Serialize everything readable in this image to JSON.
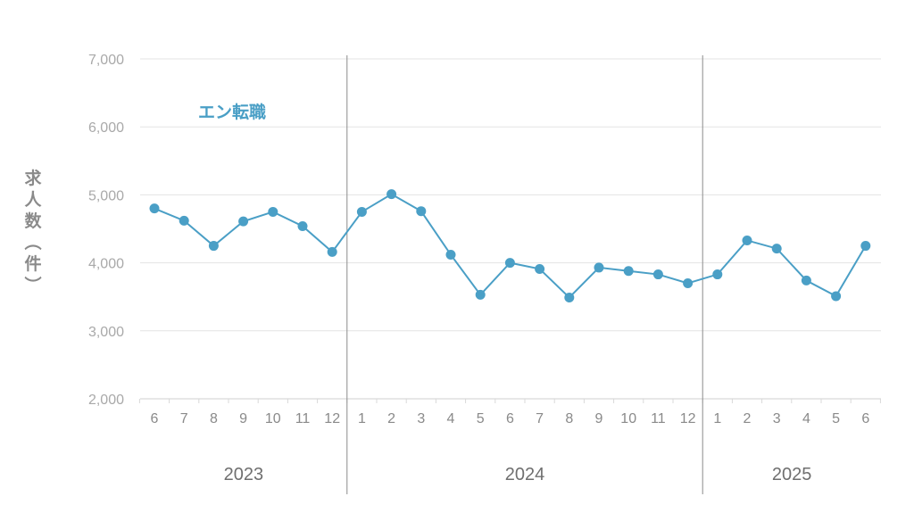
{
  "chart_data": {
    "type": "line",
    "ylabel": "求人数（件）",
    "ylim": [
      2000,
      7000
    ],
    "yticks": [
      "2,000",
      "3,000",
      "4,000",
      "5,000",
      "6,000",
      "7,000"
    ],
    "grid": true,
    "years": [
      {
        "label": "2023",
        "months": [
          "6",
          "7",
          "8",
          "9",
          "10",
          "11",
          "12"
        ]
      },
      {
        "label": "2024",
        "months": [
          "1",
          "2",
          "3",
          "4",
          "5",
          "6",
          "7",
          "8",
          "9",
          "10",
          "11",
          "12"
        ]
      },
      {
        "label": "2025",
        "months": [
          "1",
          "2",
          "3",
          "4",
          "5",
          "6"
        ]
      }
    ],
    "series": [
      {
        "name": "エン転職",
        "color": "#4a9fc6",
        "values": [
          4800,
          4620,
          4250,
          4610,
          4750,
          4540,
          4160,
          4750,
          5010,
          4760,
          4120,
          3530,
          4000,
          3910,
          3490,
          3930,
          3880,
          3830,
          3700,
          3830,
          4330,
          4210,
          3740,
          3510,
          4250
        ]
      }
    ]
  }
}
